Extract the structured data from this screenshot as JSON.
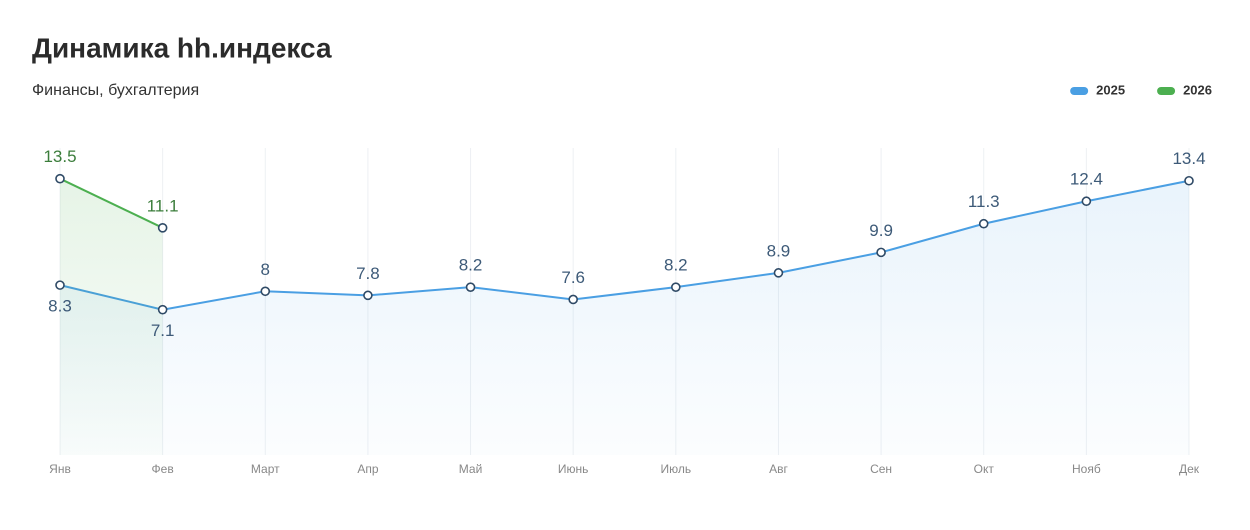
{
  "chart_data": {
    "type": "line",
    "title": "Динамика hh.индекса",
    "subtitle": "Финансы, бухгалтерия",
    "categories": [
      "Янв",
      "Фев",
      "Март",
      "Апр",
      "Май",
      "Июнь",
      "Июль",
      "Авг",
      "Сен",
      "Окт",
      "Нояб",
      "Дек"
    ],
    "series": [
      {
        "name": "2025",
        "color": "#4a9fe3",
        "label_color": "#3d5a78",
        "values": [
          8.3,
          7.1,
          8,
          7.8,
          8.2,
          7.6,
          8.2,
          8.9,
          9.9,
          11.3,
          12.4,
          13.4
        ]
      },
      {
        "name": "2026",
        "color": "#4caf50",
        "label_color": "#3b7d3b",
        "values": [
          13.5,
          11.1,
          null,
          null,
          null,
          null,
          null,
          null,
          null,
          null,
          null,
          null
        ]
      }
    ],
    "ylim": [
      0,
      15
    ],
    "grid": true,
    "legend": "top-right"
  }
}
